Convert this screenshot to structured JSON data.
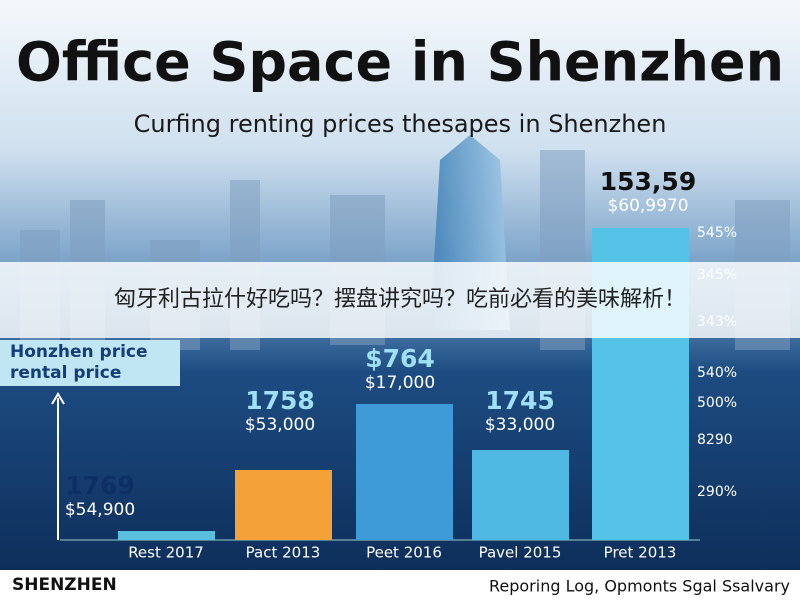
{
  "header": {
    "title": "Office Space in Shenzhen",
    "subtitle": "Curfing renting prices thesapes in Shenzhen"
  },
  "overlay_text": "匈牙利古拉什好吃吗？摆盘讲究吗？吃前必看的美味解析！",
  "side_label": [
    "Honzhen price",
    "rental price"
  ],
  "bars": [
    {
      "label": "Rest 2017",
      "top": "1769",
      "price": "$54,900"
    },
    {
      "label": "Pact 2013",
      "top": "1758",
      "price": "$53,000"
    },
    {
      "label": "Peet 2016",
      "top": "$764",
      "price": "$17,000"
    },
    {
      "label": "Pavel 2015",
      "top": "1745",
      "price": "$33,000"
    },
    {
      "label": "Pret 2013",
      "top": "153,59",
      "price": "$60,9970"
    }
  ],
  "right_labels": [
    "545%",
    "345%",
    "343%",
    "540%",
    "500%",
    "8290",
    "290%"
  ],
  "footer": {
    "left": "SHENZHEN",
    "right": "Reporing Log, Opmonts Sgal Ssalvary"
  }
}
